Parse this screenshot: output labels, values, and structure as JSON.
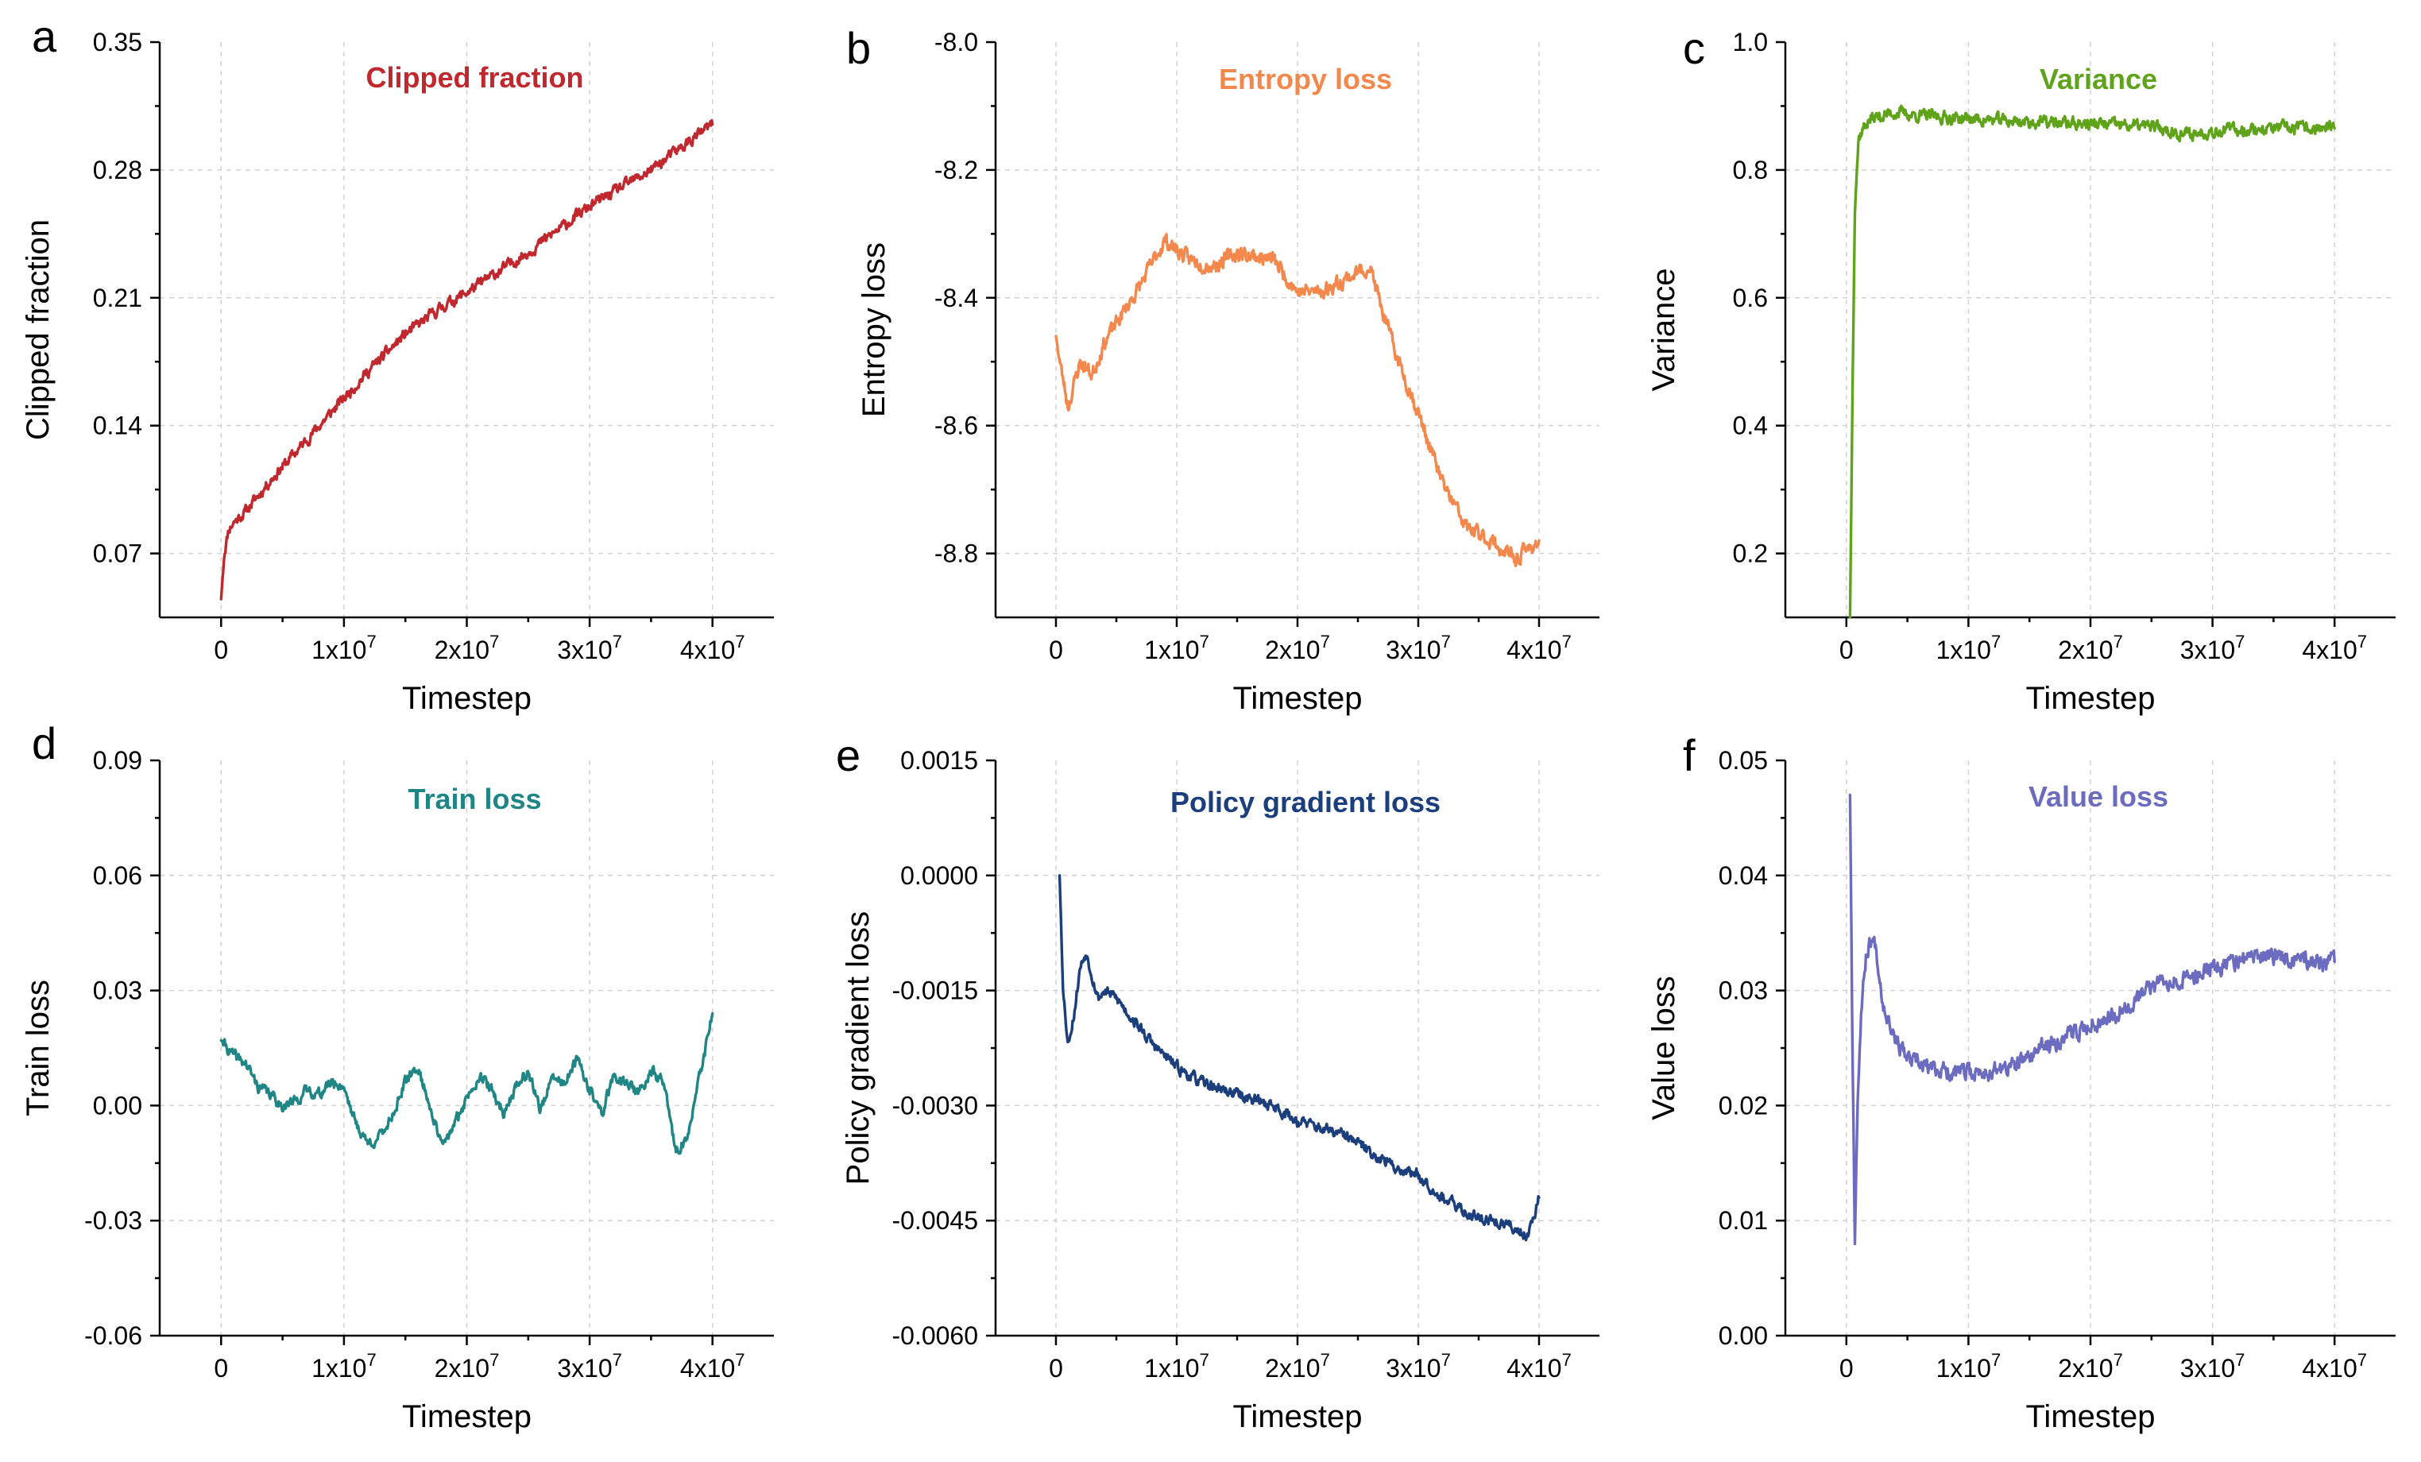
{
  "chart_data": [
    {
      "type": "line",
      "panel": "a",
      "title": "Clipped fraction",
      "color": "#c0282d",
      "xlabel": "Timestep",
      "ylabel": "Clipped fraction",
      "xlim": [
        -5000000,
        45000000
      ],
      "ylim": [
        0.035,
        0.35
      ],
      "grid": true,
      "x_ticks": [
        0,
        10000000,
        20000000,
        30000000,
        40000000
      ],
      "x_tick_labels": [
        {
          "base": "0",
          "exp": ""
        },
        {
          "base": "1x10",
          "exp": "7"
        },
        {
          "base": "2x10",
          "exp": "7"
        },
        {
          "base": "3x10",
          "exp": "7"
        },
        {
          "base": "4x10",
          "exp": "7"
        }
      ],
      "y_ticks": [
        0.07,
        0.14,
        0.21,
        0.28,
        0.35
      ],
      "y_tick_labels": [
        "0.07",
        "0.14",
        "0.21",
        "0.28",
        "0.35"
      ],
      "noise": 0.0025,
      "seed": 11,
      "series": [
        {
          "name": "Clipped fraction",
          "x": [
            0,
            250000,
            600000,
            1000000,
            2000000,
            4000000,
            6000000,
            8000000,
            10000000,
            12000000,
            15000000,
            18000000,
            20000000,
            25000000,
            30000000,
            35000000,
            40000000
          ],
          "y": [
            0.045,
            0.07,
            0.083,
            0.087,
            0.093,
            0.11,
            0.125,
            0.14,
            0.155,
            0.17,
            0.19,
            0.205,
            0.213,
            0.235,
            0.26,
            0.28,
            0.305
          ]
        }
      ]
    },
    {
      "type": "line",
      "panel": "b",
      "title": "Entropy loss",
      "color": "#f4874b",
      "xlabel": "Timestep",
      "ylabel": "Entropy loss",
      "xlim": [
        -5000000,
        45000000
      ],
      "ylim": [
        -8.9,
        -8.0
      ],
      "grid": true,
      "x_ticks": [
        0,
        10000000,
        20000000,
        30000000,
        40000000
      ],
      "x_tick_labels": [
        {
          "base": "0",
          "exp": ""
        },
        {
          "base": "1x10",
          "exp": "7"
        },
        {
          "base": "2x10",
          "exp": "7"
        },
        {
          "base": "3x10",
          "exp": "7"
        },
        {
          "base": "4x10",
          "exp": "7"
        }
      ],
      "y_ticks": [
        -8.8,
        -8.6,
        -8.4,
        -8.2,
        -8.0
      ],
      "y_tick_labels": [
        "-8.8",
        "-8.6",
        "-8.4",
        "-8.2",
        "-8.0"
      ],
      "noise": 0.01,
      "seed": 23,
      "series": [
        {
          "name": "Entropy loss",
          "x": [
            0,
            500000,
            1000000,
            2000000,
            3000000,
            4000000,
            5000000,
            7000000,
            9000000,
            11000000,
            13000000,
            15000000,
            18000000,
            20000000,
            22000000,
            24000000,
            26000000,
            27000000,
            28000000,
            30000000,
            32000000,
            34000000,
            36000000,
            38000000,
            40000000
          ],
          "y": [
            -8.46,
            -8.52,
            -8.57,
            -8.5,
            -8.52,
            -8.47,
            -8.44,
            -8.38,
            -8.31,
            -8.34,
            -8.35,
            -8.33,
            -8.34,
            -8.39,
            -8.39,
            -8.37,
            -8.35,
            -8.42,
            -8.48,
            -8.58,
            -8.69,
            -8.76,
            -8.78,
            -8.81,
            -8.78
          ]
        }
      ]
    },
    {
      "type": "line",
      "panel": "c",
      "title": "Variance",
      "color": "#5fa31a",
      "xlabel": "Timestep",
      "ylabel": "Variance",
      "xlim": [
        -5000000,
        45000000
      ],
      "ylim": [
        0.1,
        1.0
      ],
      "grid": true,
      "x_ticks": [
        0,
        10000000,
        20000000,
        30000000,
        40000000
      ],
      "x_tick_labels": [
        {
          "base": "0",
          "exp": ""
        },
        {
          "base": "1x10",
          "exp": "7"
        },
        {
          "base": "2x10",
          "exp": "7"
        },
        {
          "base": "3x10",
          "exp": "7"
        },
        {
          "base": "4x10",
          "exp": "7"
        }
      ],
      "y_ticks": [
        0.2,
        0.4,
        0.6,
        0.8,
        1.0
      ],
      "y_tick_labels": [
        "0.2",
        "0.4",
        "0.6",
        "0.8",
        "1.0"
      ],
      "noise": 0.008,
      "seed": 37,
      "series": [
        {
          "name": "Variance",
          "x": [
            300000,
            500000,
            700000,
            1000000,
            1500000,
            2000000,
            3000000,
            4000000,
            6000000,
            10000000,
            15000000,
            20000000,
            25000000,
            28000000,
            30000000,
            35000000,
            40000000
          ],
          "y": [
            0.1,
            0.45,
            0.75,
            0.85,
            0.87,
            0.88,
            0.885,
            0.89,
            0.885,
            0.88,
            0.875,
            0.872,
            0.868,
            0.855,
            0.862,
            0.865,
            0.865
          ]
        }
      ]
    },
    {
      "type": "line",
      "panel": "d",
      "title": "Train loss",
      "color": "#1f8585",
      "xlabel": "Timestep",
      "ylabel": "Train loss",
      "xlim": [
        -5000000,
        45000000
      ],
      "ylim": [
        -0.06,
        0.09
      ],
      "grid": true,
      "x_ticks": [
        0,
        10000000,
        20000000,
        30000000,
        40000000
      ],
      "x_tick_labels": [
        {
          "base": "0",
          "exp": ""
        },
        {
          "base": "1x10",
          "exp": "7"
        },
        {
          "base": "2x10",
          "exp": "7"
        },
        {
          "base": "3x10",
          "exp": "7"
        },
        {
          "base": "4x10",
          "exp": "7"
        }
      ],
      "y_ticks": [
        -0.06,
        -0.03,
        0.0,
        0.03,
        0.06,
        0.09
      ],
      "y_tick_labels": [
        "-0.06",
        "-0.03",
        "0.00",
        "0.03",
        "0.06",
        "0.09"
      ],
      "noise": 0.0012,
      "seed": 41,
      "series": [
        {
          "name": "Train loss",
          "x": [
            0,
            1000000,
            2000000,
            3000000,
            4000000,
            5000000,
            6000000,
            7000000,
            8000000,
            9000000,
            10000000,
            11000000,
            12000000,
            13000000,
            14000000,
            15000000,
            16000000,
            17000000,
            18000000,
            19000000,
            20000000,
            21000000,
            22000000,
            23000000,
            24000000,
            25000000,
            26000000,
            27000000,
            28000000,
            29000000,
            30000000,
            31000000,
            32000000,
            33000000,
            34000000,
            35000000,
            36000000,
            37000000,
            38000000,
            39000000,
            40000000
          ],
          "y": [
            0.017,
            0.013,
            0.011,
            0.005,
            0.003,
            0.0,
            0.001,
            0.004,
            0.003,
            0.006,
            0.005,
            -0.005,
            -0.01,
            -0.008,
            -0.002,
            0.006,
            0.01,
            0.0,
            -0.011,
            -0.005,
            0.002,
            0.008,
            0.004,
            -0.002,
            0.005,
            0.009,
            -0.001,
            0.007,
            0.006,
            0.012,
            0.004,
            -0.002,
            0.008,
            0.006,
            0.003,
            0.009,
            0.006,
            -0.012,
            -0.008,
            0.008,
            0.024
          ]
        }
      ]
    },
    {
      "type": "line",
      "panel": "e",
      "title": "Policy gradient loss",
      "color": "#1b3f7c",
      "xlabel": "Timestep",
      "ylabel": "Policy gradient loss",
      "xlim": [
        -5000000,
        45000000
      ],
      "ylim": [
        -0.006,
        0.0015
      ],
      "grid": true,
      "x_ticks": [
        0,
        10000000,
        20000000,
        30000000,
        40000000
      ],
      "x_tick_labels": [
        {
          "base": "0",
          "exp": ""
        },
        {
          "base": "1x10",
          "exp": "7"
        },
        {
          "base": "2x10",
          "exp": "7"
        },
        {
          "base": "3x10",
          "exp": "7"
        },
        {
          "base": "4x10",
          "exp": "7"
        }
      ],
      "y_ticks": [
        -0.006,
        -0.0045,
        -0.003,
        -0.0015,
        0.0,
        0.0015
      ],
      "y_tick_labels": [
        "-0.0060",
        "-0.0045",
        "-0.0030",
        "-0.0015",
        "0.0000",
        "0.0015"
      ],
      "noise": 6e-05,
      "seed": 53,
      "series": [
        {
          "name": "Policy gradient loss",
          "x": [
            300000,
            600000,
            1000000,
            1500000,
            2000000,
            2500000,
            3000000,
            3500000,
            4000000,
            5000000,
            6000000,
            8000000,
            10000000,
            12000000,
            14000000,
            16000000,
            18000000,
            20000000,
            22000000,
            24000000,
            26000000,
            28000000,
            30000000,
            32000000,
            34000000,
            36000000,
            38000000,
            39000000,
            40000000
          ],
          "y": [
            0.0,
            -0.0015,
            -0.0022,
            -0.0018,
            -0.0012,
            -0.001,
            -0.0013,
            -0.0016,
            -0.0015,
            -0.0016,
            -0.0018,
            -0.0022,
            -0.0025,
            -0.0027,
            -0.0028,
            -0.0029,
            -0.003,
            -0.0032,
            -0.0033,
            -0.0034,
            -0.0036,
            -0.0038,
            -0.0039,
            -0.0042,
            -0.0044,
            -0.0045,
            -0.0046,
            -0.0047,
            -0.0042
          ]
        }
      ]
    },
    {
      "type": "line",
      "panel": "f",
      "title": "Value loss",
      "color": "#6b6bbf",
      "xlabel": "Timestep",
      "ylabel": "Value loss",
      "xlim": [
        -5000000,
        45000000
      ],
      "ylim": [
        0.0,
        0.05
      ],
      "grid": true,
      "x_ticks": [
        0,
        10000000,
        20000000,
        30000000,
        40000000
      ],
      "x_tick_labels": [
        {
          "base": "0",
          "exp": ""
        },
        {
          "base": "1x10",
          "exp": "7"
        },
        {
          "base": "2x10",
          "exp": "7"
        },
        {
          "base": "3x10",
          "exp": "7"
        },
        {
          "base": "4x10",
          "exp": "7"
        }
      ],
      "y_ticks": [
        0.0,
        0.01,
        0.02,
        0.03,
        0.04,
        0.05
      ],
      "y_tick_labels": [
        "0.00",
        "0.01",
        "0.02",
        "0.03",
        "0.04",
        "0.05"
      ],
      "noise": 0.0006,
      "seed": 67,
      "series": [
        {
          "name": "Value loss",
          "x": [
            300000,
            500000,
            700000,
            900000,
            1200000,
            1600000,
            2000000,
            2400000,
            3000000,
            4000000,
            5000000,
            6000000,
            8000000,
            10000000,
            12000000,
            14000000,
            16000000,
            18000000,
            20000000,
            22000000,
            24000000,
            26000000,
            28000000,
            30000000,
            32000000,
            34000000,
            36000000,
            38000000,
            40000000
          ],
          "y": [
            0.047,
            0.025,
            0.0085,
            0.02,
            0.028,
            0.033,
            0.0345,
            0.034,
            0.029,
            0.026,
            0.024,
            0.0235,
            0.023,
            0.0228,
            0.023,
            0.0235,
            0.025,
            0.026,
            0.027,
            0.028,
            0.0295,
            0.031,
            0.031,
            0.032,
            0.0325,
            0.033,
            0.033,
            0.0325,
            0.0325
          ]
        }
      ]
    }
  ]
}
